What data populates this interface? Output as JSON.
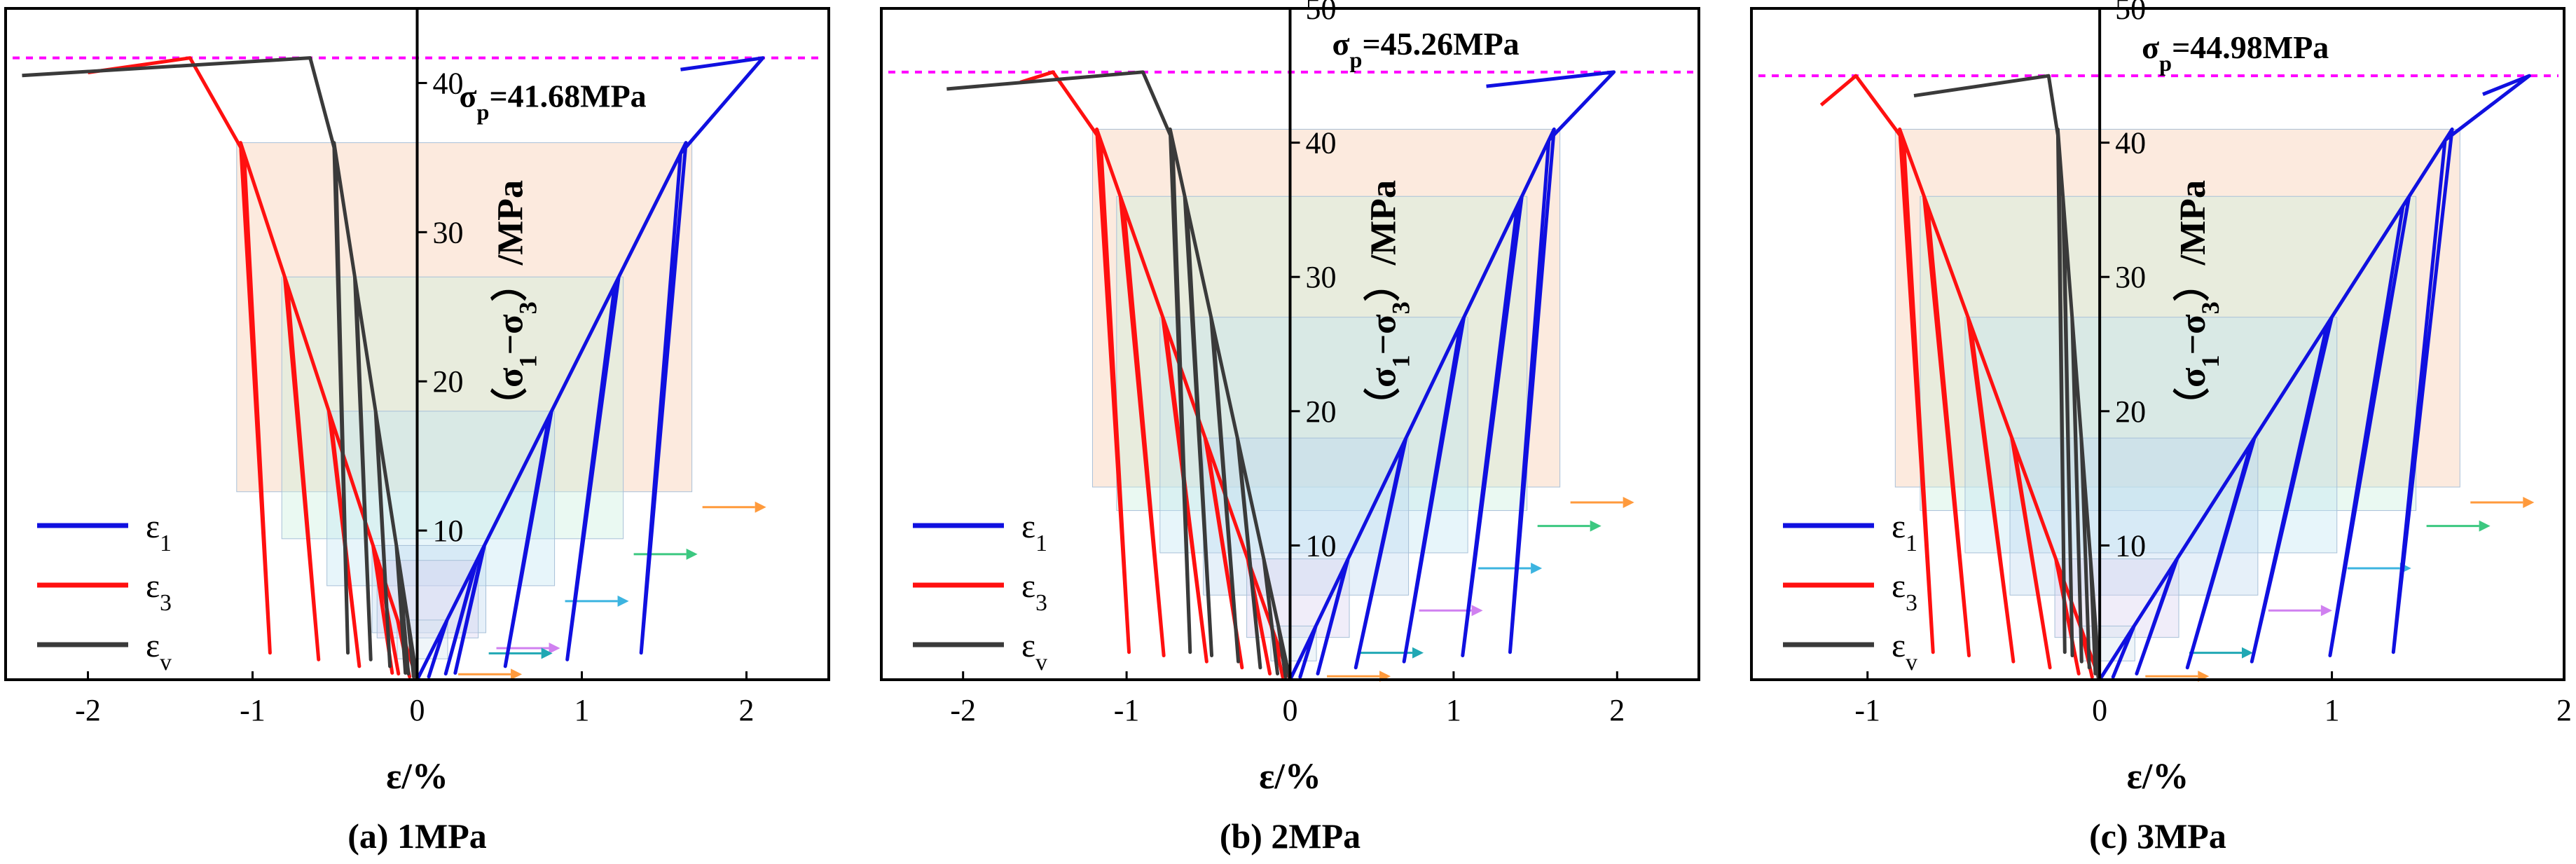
{
  "figure": {
    "xlabel": "ε/%",
    "ylabel": "（σ1−σ3）/MPa",
    "legend": [
      "ε1",
      "ε3",
      "εv"
    ]
  },
  "colors": {
    "eps1": "#1010e0",
    "eps3": "#ff1010",
    "epsv": "#3a3a3a",
    "peak_line": "#ff00ff",
    "frame": "#000000",
    "arrows": [
      "#ff9a3c",
      "#3cc880",
      "#3cb4e0",
      "#d080f0",
      "#20a8b4"
    ]
  },
  "chart_data": [
    {
      "type": "line",
      "panel": "a",
      "caption": "(a) 1MPa",
      "xlabel": "ε/%",
      "ylabel": "（σ1−σ3）/MPa",
      "xlim": [
        -2.5,
        2.5
      ],
      "ylim": [
        0,
        45
      ],
      "xticks": [
        -2,
        -1,
        0,
        1,
        2
      ],
      "yticks": [
        10,
        20,
        30,
        40
      ],
      "peak_stress": 41.68,
      "peak_label": "σp=41.68MPa",
      "legend": [
        "ε1",
        "ε3",
        "εv"
      ],
      "cycle_levels": [
        4,
        8,
        9,
        18,
        27,
        36
      ],
      "series": [
        {
          "name": "ε1",
          "peak_strain": 2.1,
          "residual_strain": 1.6,
          "residual_stress": 40.9
        },
        {
          "name": "ε3",
          "peak_strain": -1.38,
          "residual_strain": -2.0,
          "residual_stress": 40.7
        },
        {
          "name": "εv",
          "peak_strain": -0.65,
          "residual_strain": -2.4,
          "residual_stress": 40.5
        }
      ]
    },
    {
      "type": "line",
      "panel": "b",
      "caption": "(b) 2MPa",
      "xlabel": "ε/%",
      "ylabel": "（σ1−σ3）/MPa",
      "xlim": [
        -2.5,
        2.5
      ],
      "ylim": [
        0,
        50
      ],
      "xticks": [
        -2,
        -1,
        0,
        1,
        2
      ],
      "yticks": [
        10,
        20,
        30,
        40,
        50
      ],
      "peak_stress": 45.26,
      "peak_label": "σp=45.26MPa",
      "legend": [
        "ε1",
        "ε3",
        "εv"
      ],
      "cycle_levels": [
        4,
        9,
        18,
        27,
        36,
        41
      ],
      "series": [
        {
          "name": "ε1",
          "peak_strain": 1.98,
          "residual_strain": 1.2,
          "residual_stress": 44.2
        },
        {
          "name": "ε3",
          "peak_strain": -1.45,
          "residual_strain": -1.65,
          "residual_stress": 44.5
        },
        {
          "name": "εv",
          "peak_strain": -0.9,
          "residual_strain": -2.1,
          "residual_stress": 44.0
        }
      ]
    },
    {
      "type": "line",
      "panel": "c",
      "caption": "(c) 3MPa",
      "xlabel": "ε/%",
      "ylabel": "（σ1−σ3）/MPa",
      "xlim": [
        -1.5,
        2.0
      ],
      "ylim": [
        0,
        50
      ],
      "xticks": [
        -1,
        0,
        1,
        2
      ],
      "yticks": [
        10,
        20,
        30,
        40,
        50
      ],
      "peak_stress": 44.98,
      "peak_label": "σp=44.98MPa",
      "legend": [
        "ε1",
        "ε3",
        "εv"
      ],
      "cycle_levels": [
        4,
        9,
        18,
        27,
        36,
        41
      ],
      "series": [
        {
          "name": "ε1",
          "peak_strain": 1.85,
          "residual_strain": 1.65,
          "residual_stress": 43.6
        },
        {
          "name": "ε3",
          "peak_strain": -1.05,
          "residual_strain": -1.2,
          "residual_stress": 42.8
        },
        {
          "name": "εv",
          "peak_strain": -0.22,
          "residual_strain": -0.8,
          "residual_stress": 43.5
        }
      ]
    }
  ]
}
